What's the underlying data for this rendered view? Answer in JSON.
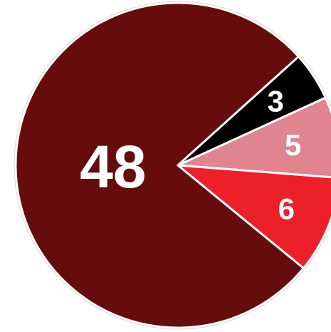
{
  "chart_data": {
    "type": "pie",
    "slices": [
      {
        "label": "48",
        "value": 48,
        "color": "#660c0c"
      },
      {
        "label": "3",
        "value": 3,
        "color": "#000000"
      },
      {
        "label": "5",
        "value": 5,
        "color": "#e0848f"
      },
      {
        "label": "6",
        "value": 6,
        "color": "#ed1f28"
      }
    ]
  }
}
